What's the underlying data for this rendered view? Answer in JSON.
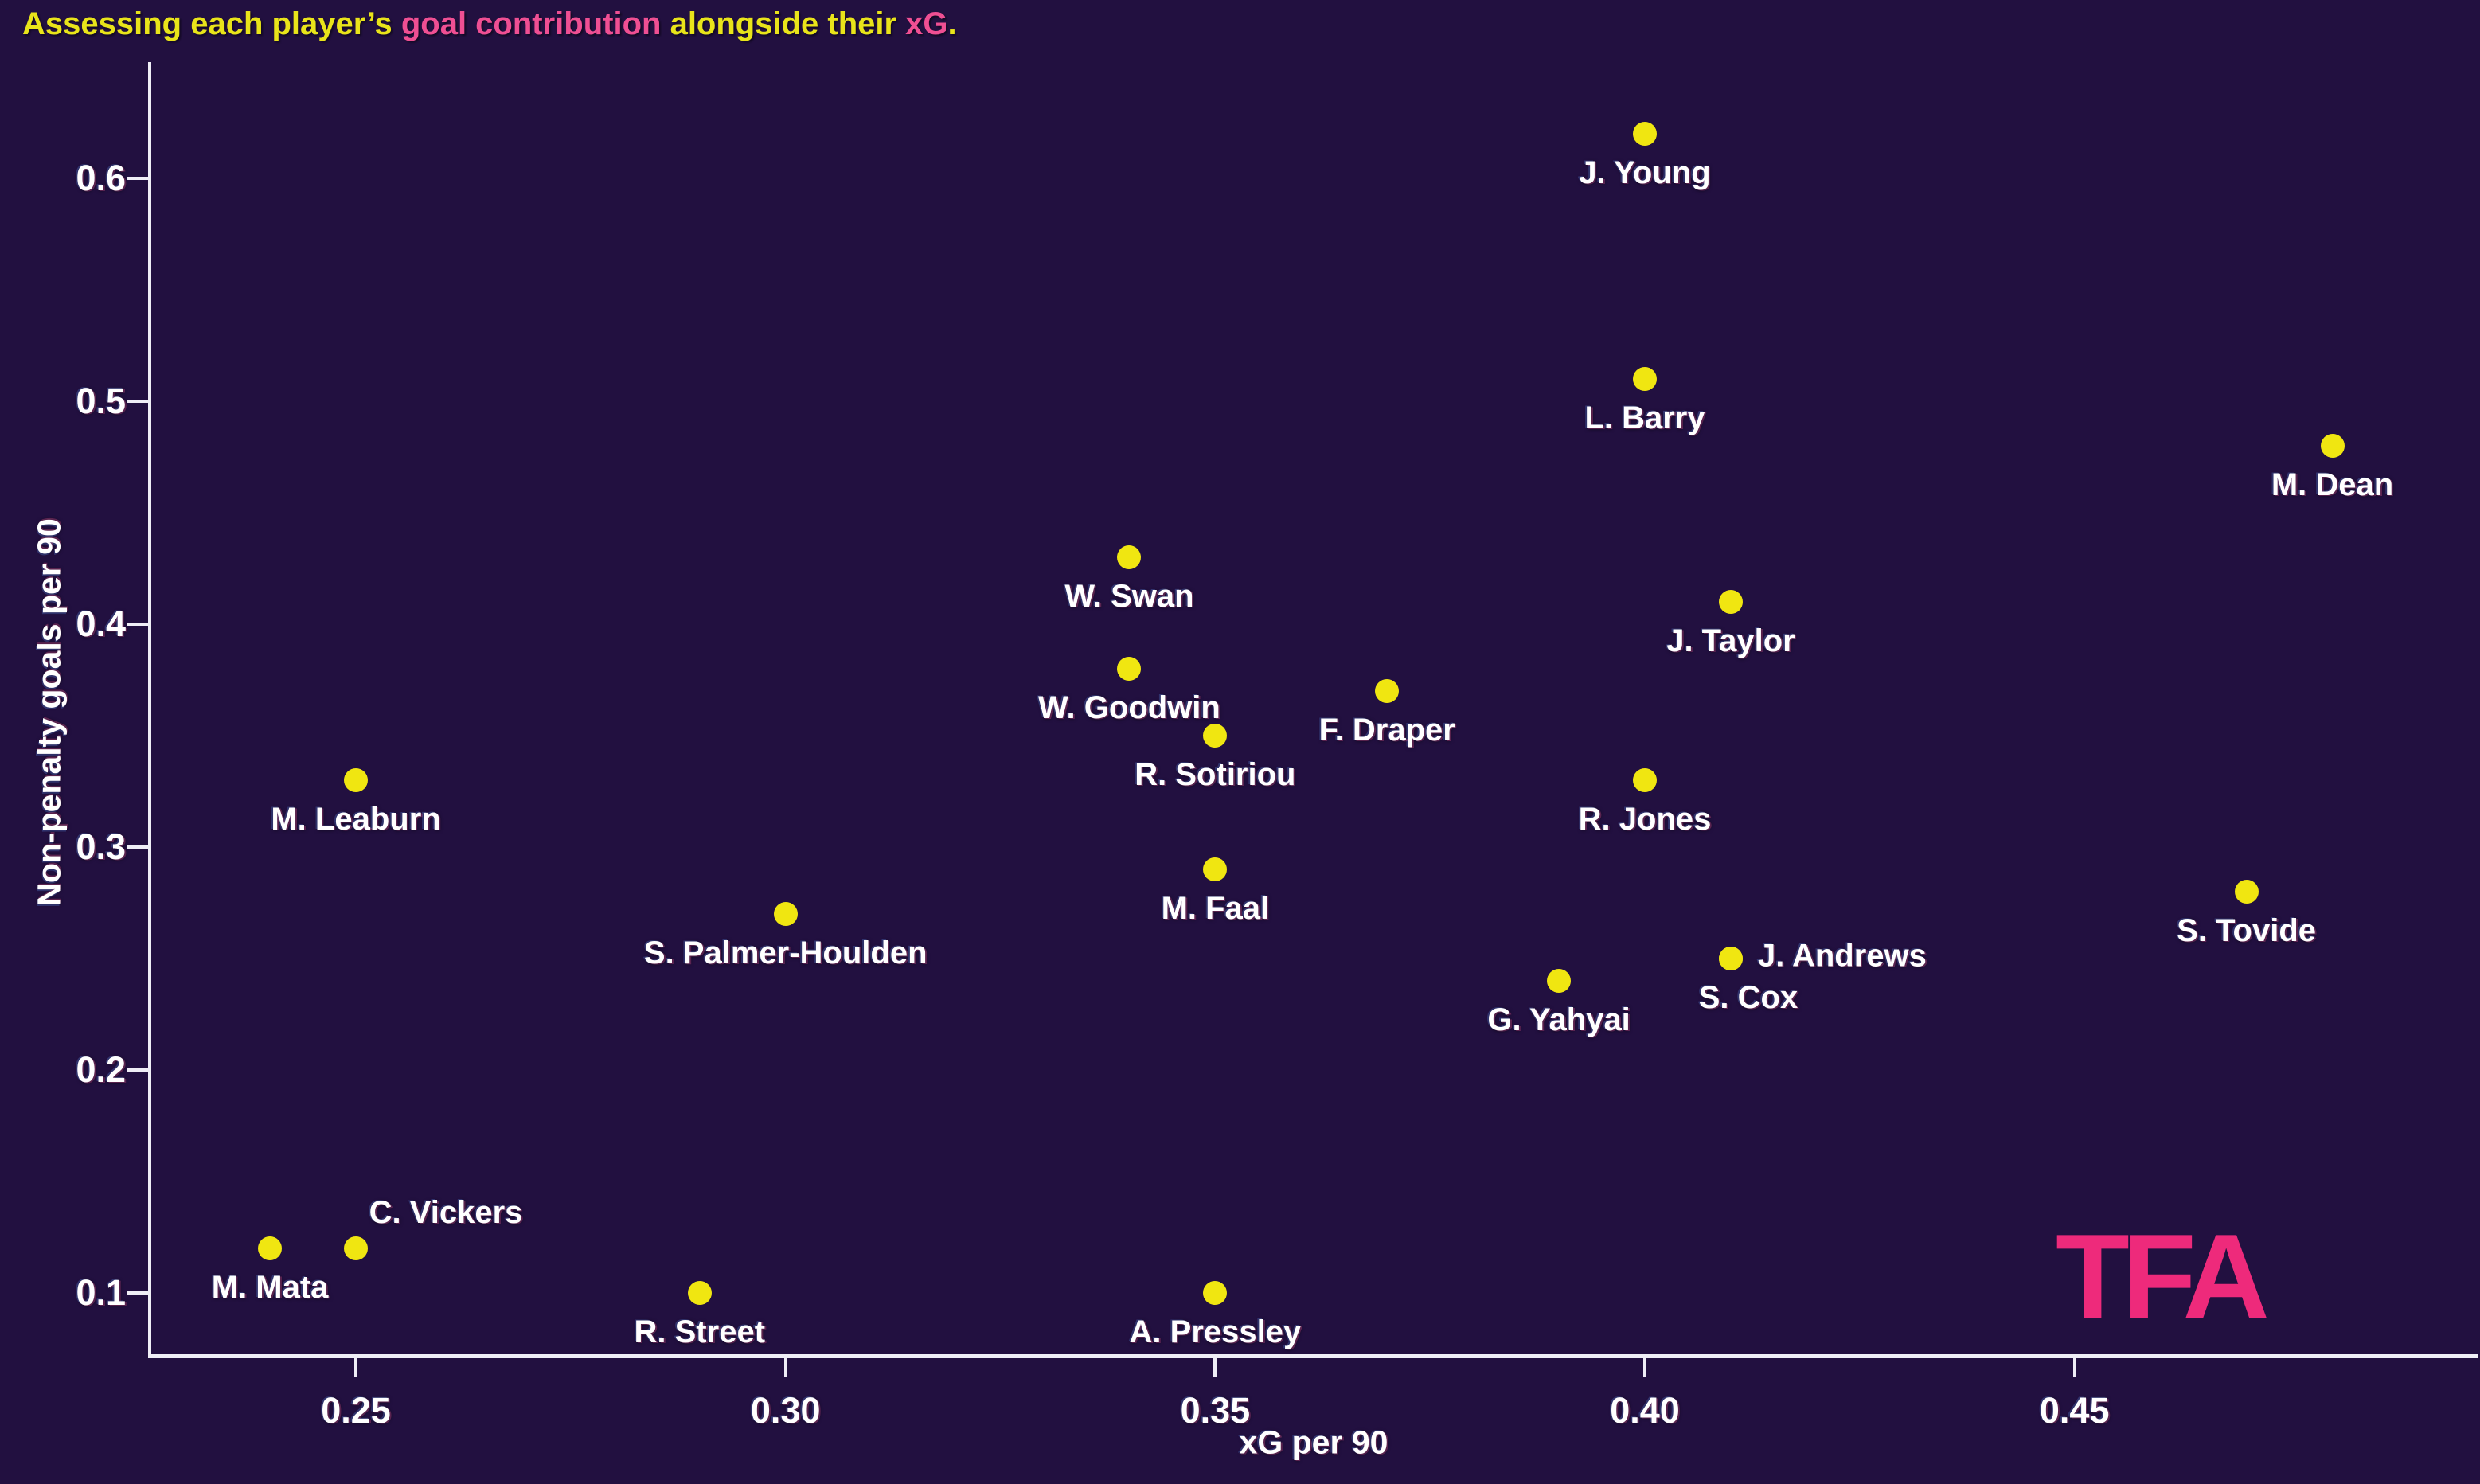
{
  "title": {
    "segments": [
      {
        "text": "Assessing each player’s ",
        "color": "#e9e41a"
      },
      {
        "text": "goal contribution",
        "color": "#ef4f93"
      },
      {
        "text": " alongside their ",
        "color": "#e9e41a"
      },
      {
        "text": "xG",
        "color": "#ef4f93"
      },
      {
        "text": ".",
        "color": "#e9e41a"
      }
    ]
  },
  "logo": {
    "text": "TFA",
    "color": "#ee2a7b"
  },
  "colors": {
    "background": "#221040",
    "dot": "#f0e611",
    "axis_line": "#efeef6",
    "tick_label": "#ffffff",
    "point_label": "#ffffff"
  },
  "chart_data": {
    "type": "scatter",
    "title": "Assessing each player’s goal contribution alongside their xG.",
    "xlabel": "xG per 90",
    "ylabel": "Non-penalty goals per 90",
    "xlim": [
      0.226,
      0.497
    ],
    "ylim": [
      0.072,
      0.652
    ],
    "grid": false,
    "legend": "none",
    "xticks": [
      0.25,
      0.3,
      0.35,
      0.4,
      0.45
    ],
    "xtick_labels": [
      "0.25",
      "0.30",
      "0.35",
      "0.40",
      "0.45"
    ],
    "yticks": [
      0.1,
      0.2,
      0.3,
      0.4,
      0.5,
      0.6
    ],
    "ytick_labels": [
      "0.1",
      "0.2",
      "0.3",
      "0.4",
      "0.5",
      "0.6"
    ],
    "points": [
      {
        "name": "M. Mata",
        "x": 0.24,
        "y": 0.12,
        "label_pos": "below"
      },
      {
        "name": "C. Vickers",
        "x": 0.25,
        "y": 0.12,
        "label_pos": "above-right"
      },
      {
        "name": "M. Leaburn",
        "x": 0.25,
        "y": 0.33,
        "label_pos": "below"
      },
      {
        "name": "R. Street",
        "x": 0.29,
        "y": 0.1,
        "label_pos": "below"
      },
      {
        "name": "S. Palmer-Houlden",
        "x": 0.3,
        "y": 0.27,
        "label_pos": "below"
      },
      {
        "name": "W. Swan",
        "x": 0.34,
        "y": 0.43,
        "label_pos": "below"
      },
      {
        "name": "W. Goodwin",
        "x": 0.34,
        "y": 0.38,
        "label_pos": "below"
      },
      {
        "name": "R. Sotiriou",
        "x": 0.35,
        "y": 0.35,
        "label_pos": "below"
      },
      {
        "name": "M. Faal",
        "x": 0.35,
        "y": 0.29,
        "label_pos": "below"
      },
      {
        "name": "A. Pressley",
        "x": 0.35,
        "y": 0.1,
        "label_pos": "below"
      },
      {
        "name": "F. Draper",
        "x": 0.37,
        "y": 0.37,
        "label_pos": "below"
      },
      {
        "name": "G. Yahyai",
        "x": 0.39,
        "y": 0.24,
        "label_pos": "below"
      },
      {
        "name": "J. Young",
        "x": 0.4,
        "y": 0.62,
        "label_pos": "below"
      },
      {
        "name": "L. Barry",
        "x": 0.4,
        "y": 0.51,
        "label_pos": "below"
      },
      {
        "name": "R. Jones",
        "x": 0.4,
        "y": 0.33,
        "label_pos": "below"
      },
      {
        "name": "J. Taylor",
        "x": 0.41,
        "y": 0.41,
        "label_pos": "below"
      },
      {
        "name": "J. Andrews",
        "x": 0.41,
        "y": 0.25,
        "label_pos": "right"
      },
      {
        "name": "S. Cox",
        "x": 0.41,
        "y": 0.25,
        "label_pos": "below-right"
      },
      {
        "name": "S. Tovide",
        "x": 0.47,
        "y": 0.28,
        "label_pos": "below"
      },
      {
        "name": "M. Dean",
        "x": 0.48,
        "y": 0.48,
        "label_pos": "below"
      }
    ]
  }
}
